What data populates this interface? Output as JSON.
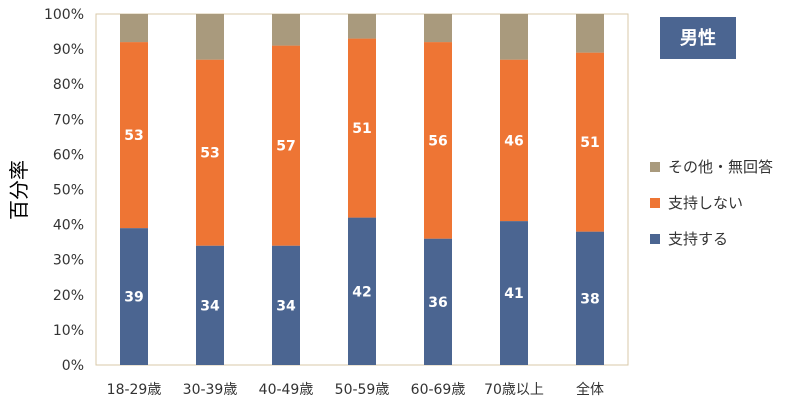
{
  "badge": {
    "label": "男性",
    "color": "#4b6591"
  },
  "chart_data": {
    "type": "bar",
    "stacked": true,
    "ylabel": "百分率",
    "ylim": [
      0,
      100
    ],
    "yticks": [
      "0%",
      "10%",
      "20%",
      "30%",
      "40%",
      "50%",
      "60%",
      "70%",
      "80%",
      "90%",
      "100%"
    ],
    "categories": [
      "18-29歳",
      "30-39歳",
      "40-49歳",
      "50-59歳",
      "60-69歳",
      "70歳以上",
      "全体"
    ],
    "series": [
      {
        "name": "支持する",
        "color": "#4b6591",
        "values": [
          39,
          34,
          34,
          42,
          36,
          41,
          38
        ]
      },
      {
        "name": "支持しない",
        "color": "#ee7534",
        "values": [
          53,
          53,
          57,
          51,
          56,
          46,
          51
        ]
      },
      {
        "name": "その他・無回答",
        "color": "#a99a7d",
        "values": [
          8,
          13,
          9,
          7,
          8,
          13,
          11
        ]
      }
    ],
    "labeled_series": [
      "支持する",
      "支持しない"
    ],
    "legend": {
      "position": "right",
      "order": [
        "その他・無回答",
        "支持しない",
        "支持する"
      ]
    },
    "grid": false,
    "frame_color": "#d9c9a8"
  }
}
